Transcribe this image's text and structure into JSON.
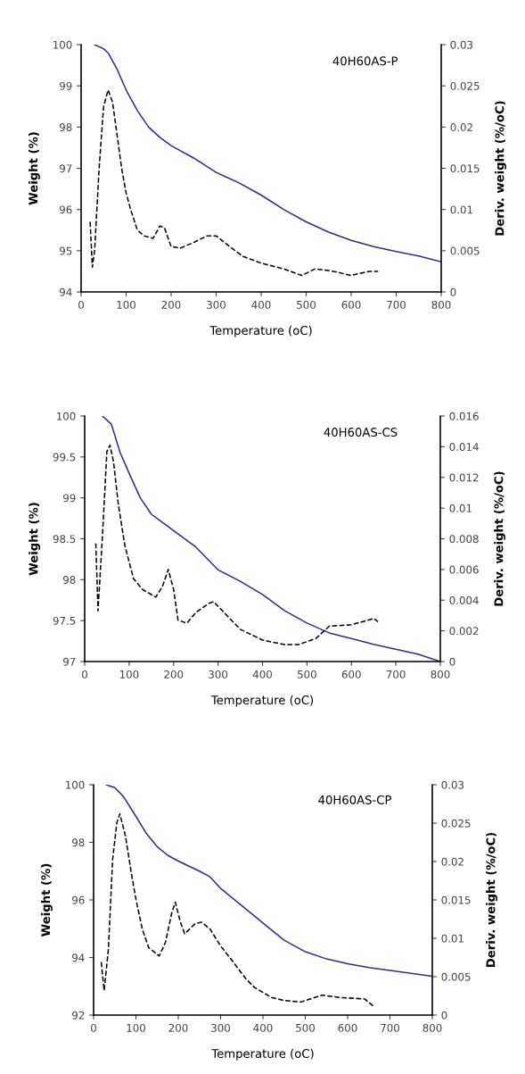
{
  "chart_data": [
    {
      "type": "line",
      "xlabel": "Temperature (oC)",
      "ylabel": "Weight (%)",
      "y2label": "Deriv. weight (%/oC)",
      "annotations": [
        "40H60AS-P"
      ],
      "xlim": [
        0,
        800
      ],
      "xticks": [
        0,
        100,
        200,
        300,
        400,
        500,
        600,
        700,
        800
      ],
      "ylim": [
        94,
        100
      ],
      "yticks": [
        94,
        95,
        96,
        97,
        98,
        99,
        100
      ],
      "y2lim": [
        0,
        0.03
      ],
      "y2ticks": [
        0,
        0.005,
        0.01,
        0.015,
        0.02,
        0.025,
        0.03
      ],
      "grid": false,
      "legend": false,
      "series": [
        {
          "color": "#2e2e8a",
          "line_style": "solid",
          "x": [
            30,
            50,
            60,
            80,
            100,
            125,
            150,
            175,
            200,
            250,
            300,
            350,
            400,
            450,
            500,
            550,
            600,
            650,
            700,
            750,
            800
          ],
          "values": [
            100,
            99.9,
            99.8,
            99.4,
            98.9,
            98.4,
            98.0,
            97.75,
            97.55,
            97.25,
            96.9,
            96.65,
            96.35,
            96.0,
            95.7,
            95.45,
            95.25,
            95.1,
            94.98,
            94.87,
            94.73
          ]
        },
        {
          "color": "#000000",
          "line_style": "dashed",
          "axis": "y2",
          "x": [
            20,
            25,
            30,
            40,
            50,
            60,
            70,
            80,
            90,
            100,
            110,
            125,
            140,
            160,
            175,
            185,
            200,
            220,
            250,
            280,
            300,
            330,
            360,
            400,
            450,
            490,
            520,
            560,
            600,
            640,
            660
          ],
          "values": [
            0.0085,
            0.003,
            0.005,
            0.015,
            0.0225,
            0.0245,
            0.023,
            0.019,
            0.015,
            0.012,
            0.01,
            0.0075,
            0.0068,
            0.0065,
            0.008,
            0.0078,
            0.0055,
            0.0053,
            0.006,
            0.0068,
            0.0068,
            0.0055,
            0.0043,
            0.0035,
            0.0028,
            0.002,
            0.0028,
            0.0025,
            0.002,
            0.0025,
            0.0025
          ]
        }
      ]
    },
    {
      "type": "line",
      "xlabel": "Temperature (oC)",
      "ylabel": "Weight (%)",
      "y2label": "Deriv. weight (%/oC)",
      "annotations": [
        "40H60AS-CS"
      ],
      "xlim": [
        0,
        800
      ],
      "xticks": [
        0,
        100,
        200,
        300,
        400,
        500,
        600,
        700,
        800
      ],
      "ylim": [
        97,
        100
      ],
      "yticks": [
        97,
        97.5,
        98,
        98.5,
        99,
        99.5,
        100
      ],
      "y2lim": [
        0,
        0.016
      ],
      "y2ticks": [
        0,
        0.002,
        0.004,
        0.006,
        0.008,
        0.01,
        0.012,
        0.014,
        0.016
      ],
      "grid": false,
      "legend": false,
      "series": [
        {
          "color": "#2e2e8a",
          "line_style": "solid",
          "x": [
            40,
            60,
            80,
            100,
            125,
            150,
            175,
            200,
            250,
            300,
            350,
            400,
            450,
            500,
            550,
            600,
            650,
            700,
            750,
            800
          ],
          "values": [
            100,
            99.9,
            99.55,
            99.3,
            99.0,
            98.8,
            98.7,
            98.6,
            98.4,
            98.12,
            97.98,
            97.82,
            97.62,
            97.47,
            97.35,
            97.28,
            97.21,
            97.15,
            97.09,
            97.0
          ]
        },
        {
          "color": "#000000",
          "line_style": "dashed",
          "axis": "y2",
          "x": [
            25,
            30,
            40,
            50,
            57,
            65,
            75,
            90,
            110,
            130,
            160,
            175,
            188,
            200,
            210,
            230,
            250,
            280,
            290,
            320,
            350,
            400,
            450,
            480,
            520,
            550,
            600,
            650,
            660
          ],
          "values": [
            0.0077,
            0.0033,
            0.0082,
            0.0137,
            0.0141,
            0.013,
            0.0104,
            0.0076,
            0.0054,
            0.0047,
            0.0042,
            0.0049,
            0.006,
            0.0047,
            0.0027,
            0.0025,
            0.0032,
            0.0038,
            0.0039,
            0.003,
            0.0021,
            0.0014,
            0.0011,
            0.0011,
            0.0015,
            0.0023,
            0.0024,
            0.0028,
            0.0026
          ]
        }
      ]
    },
    {
      "type": "line",
      "xlabel": "Temperature (oC)",
      "ylabel": "Weight (%)",
      "y2label": "Deriv. weight (%/oC)",
      "annotations": [
        "40H60AS-CP"
      ],
      "xlim": [
        0,
        800
      ],
      "xticks": [
        0,
        100,
        200,
        300,
        400,
        500,
        600,
        700,
        800
      ],
      "ylim": [
        92,
        100
      ],
      "yticks": [
        92,
        94,
        96,
        98,
        100
      ],
      "y2lim": [
        0,
        0.03
      ],
      "y2ticks": [
        0,
        0.005,
        0.01,
        0.015,
        0.02,
        0.025,
        0.03
      ],
      "grid": false,
      "legend": false,
      "series": [
        {
          "color": "#2e2e8a",
          "line_style": "solid",
          "x": [
            30,
            50,
            70,
            100,
            125,
            150,
            175,
            200,
            250,
            275,
            300,
            350,
            400,
            450,
            500,
            550,
            600,
            650,
            700,
            750,
            800
          ],
          "values": [
            100,
            99.9,
            99.6,
            98.9,
            98.3,
            97.85,
            97.55,
            97.35,
            97.0,
            96.8,
            96.4,
            95.8,
            95.2,
            94.6,
            94.2,
            93.95,
            93.78,
            93.65,
            93.55,
            93.45,
            93.35
          ]
        },
        {
          "color": "#000000",
          "line_style": "dashed",
          "axis": "y2",
          "x": [
            18,
            25,
            35,
            45,
            55,
            62,
            75,
            90,
            100,
            115,
            130,
            155,
            170,
            185,
            193,
            205,
            215,
            240,
            255,
            275,
            300,
            330,
            360,
            380,
            420,
            450,
            490,
            540,
            580,
            640,
            660
          ],
          "values": [
            0.0069,
            0.0032,
            0.0086,
            0.0203,
            0.0251,
            0.0262,
            0.0234,
            0.0182,
            0.0151,
            0.0112,
            0.0088,
            0.0077,
            0.0095,
            0.0134,
            0.0147,
            0.0121,
            0.0106,
            0.0119,
            0.0121,
            0.0112,
            0.009,
            0.0069,
            0.0047,
            0.0036,
            0.0023,
            0.0019,
            0.0017,
            0.0026,
            0.0023,
            0.0021,
            0.0012
          ]
        }
      ]
    }
  ]
}
